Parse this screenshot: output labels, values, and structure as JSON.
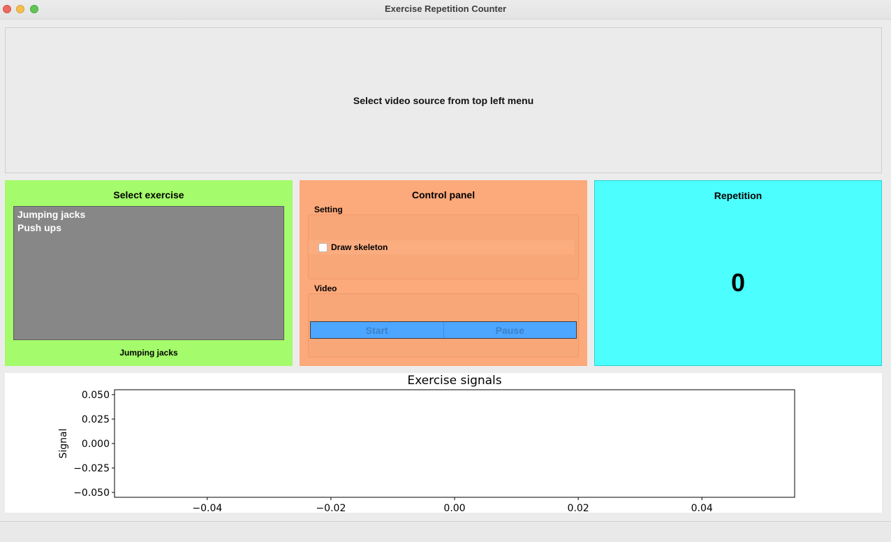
{
  "window": {
    "title": "Exercise Repetition Counter"
  },
  "video": {
    "message": "Select video source from top left menu"
  },
  "exercise_panel": {
    "title": "Select exercise",
    "items": [
      "Jumping jacks",
      "Push ups"
    ],
    "selected": "Jumping jacks",
    "color": "#a4fb6b"
  },
  "control_panel": {
    "title": "Control panel",
    "setting_label": "Setting",
    "draw_skeleton_label": "Draw skeleton",
    "draw_skeleton_checked": false,
    "video_label": "Video",
    "start_label": "Start",
    "pause_label": "Pause",
    "color": "#fca97b",
    "button_color": "#4da6ff"
  },
  "repetition_panel": {
    "title": "Repetition",
    "count": "0",
    "color": "#4cfffe"
  },
  "chart_data": {
    "type": "line",
    "title": "Exercise signals",
    "xlabel": "",
    "ylabel": "Signal",
    "series": [],
    "xlim": [
      -0.055,
      0.055
    ],
    "ylim": [
      -0.055,
      0.055
    ],
    "xticks": [
      -0.04,
      -0.02,
      0.0,
      0.02,
      0.04
    ],
    "xtick_labels": [
      "−0.04",
      "−0.02",
      "0.00",
      "0.02",
      "0.04"
    ],
    "yticks": [
      0.05,
      0.025,
      0.0,
      -0.025,
      -0.05
    ],
    "ytick_labels": [
      "0.050",
      "0.025",
      "0.000",
      "−0.025",
      "−0.050"
    ],
    "grid": false
  }
}
